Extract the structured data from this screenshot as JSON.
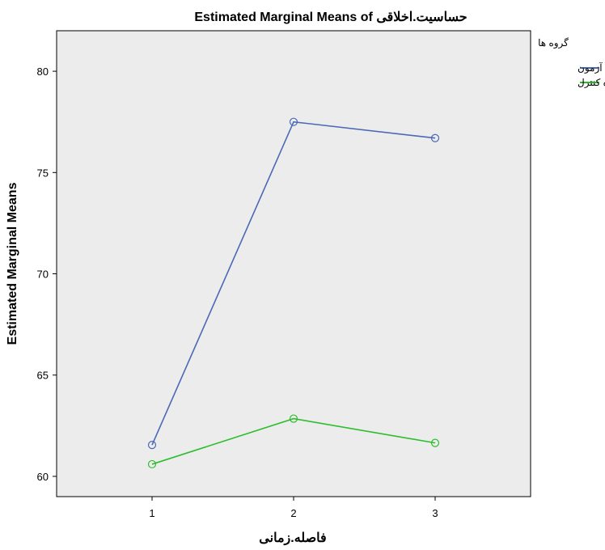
{
  "chart_data": {
    "type": "line",
    "title": "Estimated Marginal Means of حساسیت.اخلاقی",
    "xlabel": "فاصله.زمانی",
    "ylabel": "Estimated Marginal Means",
    "categories": [
      "1",
      "2",
      "3"
    ],
    "ylim": [
      59,
      82
    ],
    "yticks": [
      60,
      65,
      70,
      75,
      80
    ],
    "grid": false,
    "legend": {
      "title": "گروه ها",
      "placement": "right"
    },
    "series": [
      {
        "name": "گروه آزمون",
        "values": [
          61.55,
          77.5,
          76.7
        ],
        "color": "#4c68b6"
      },
      {
        "name": "گروه کنترل",
        "values": [
          60.6,
          62.85,
          61.65
        ],
        "color": "#2dbd2d"
      }
    ]
  },
  "colors": {
    "plot_background": "#ececec",
    "frame": "#000000"
  }
}
